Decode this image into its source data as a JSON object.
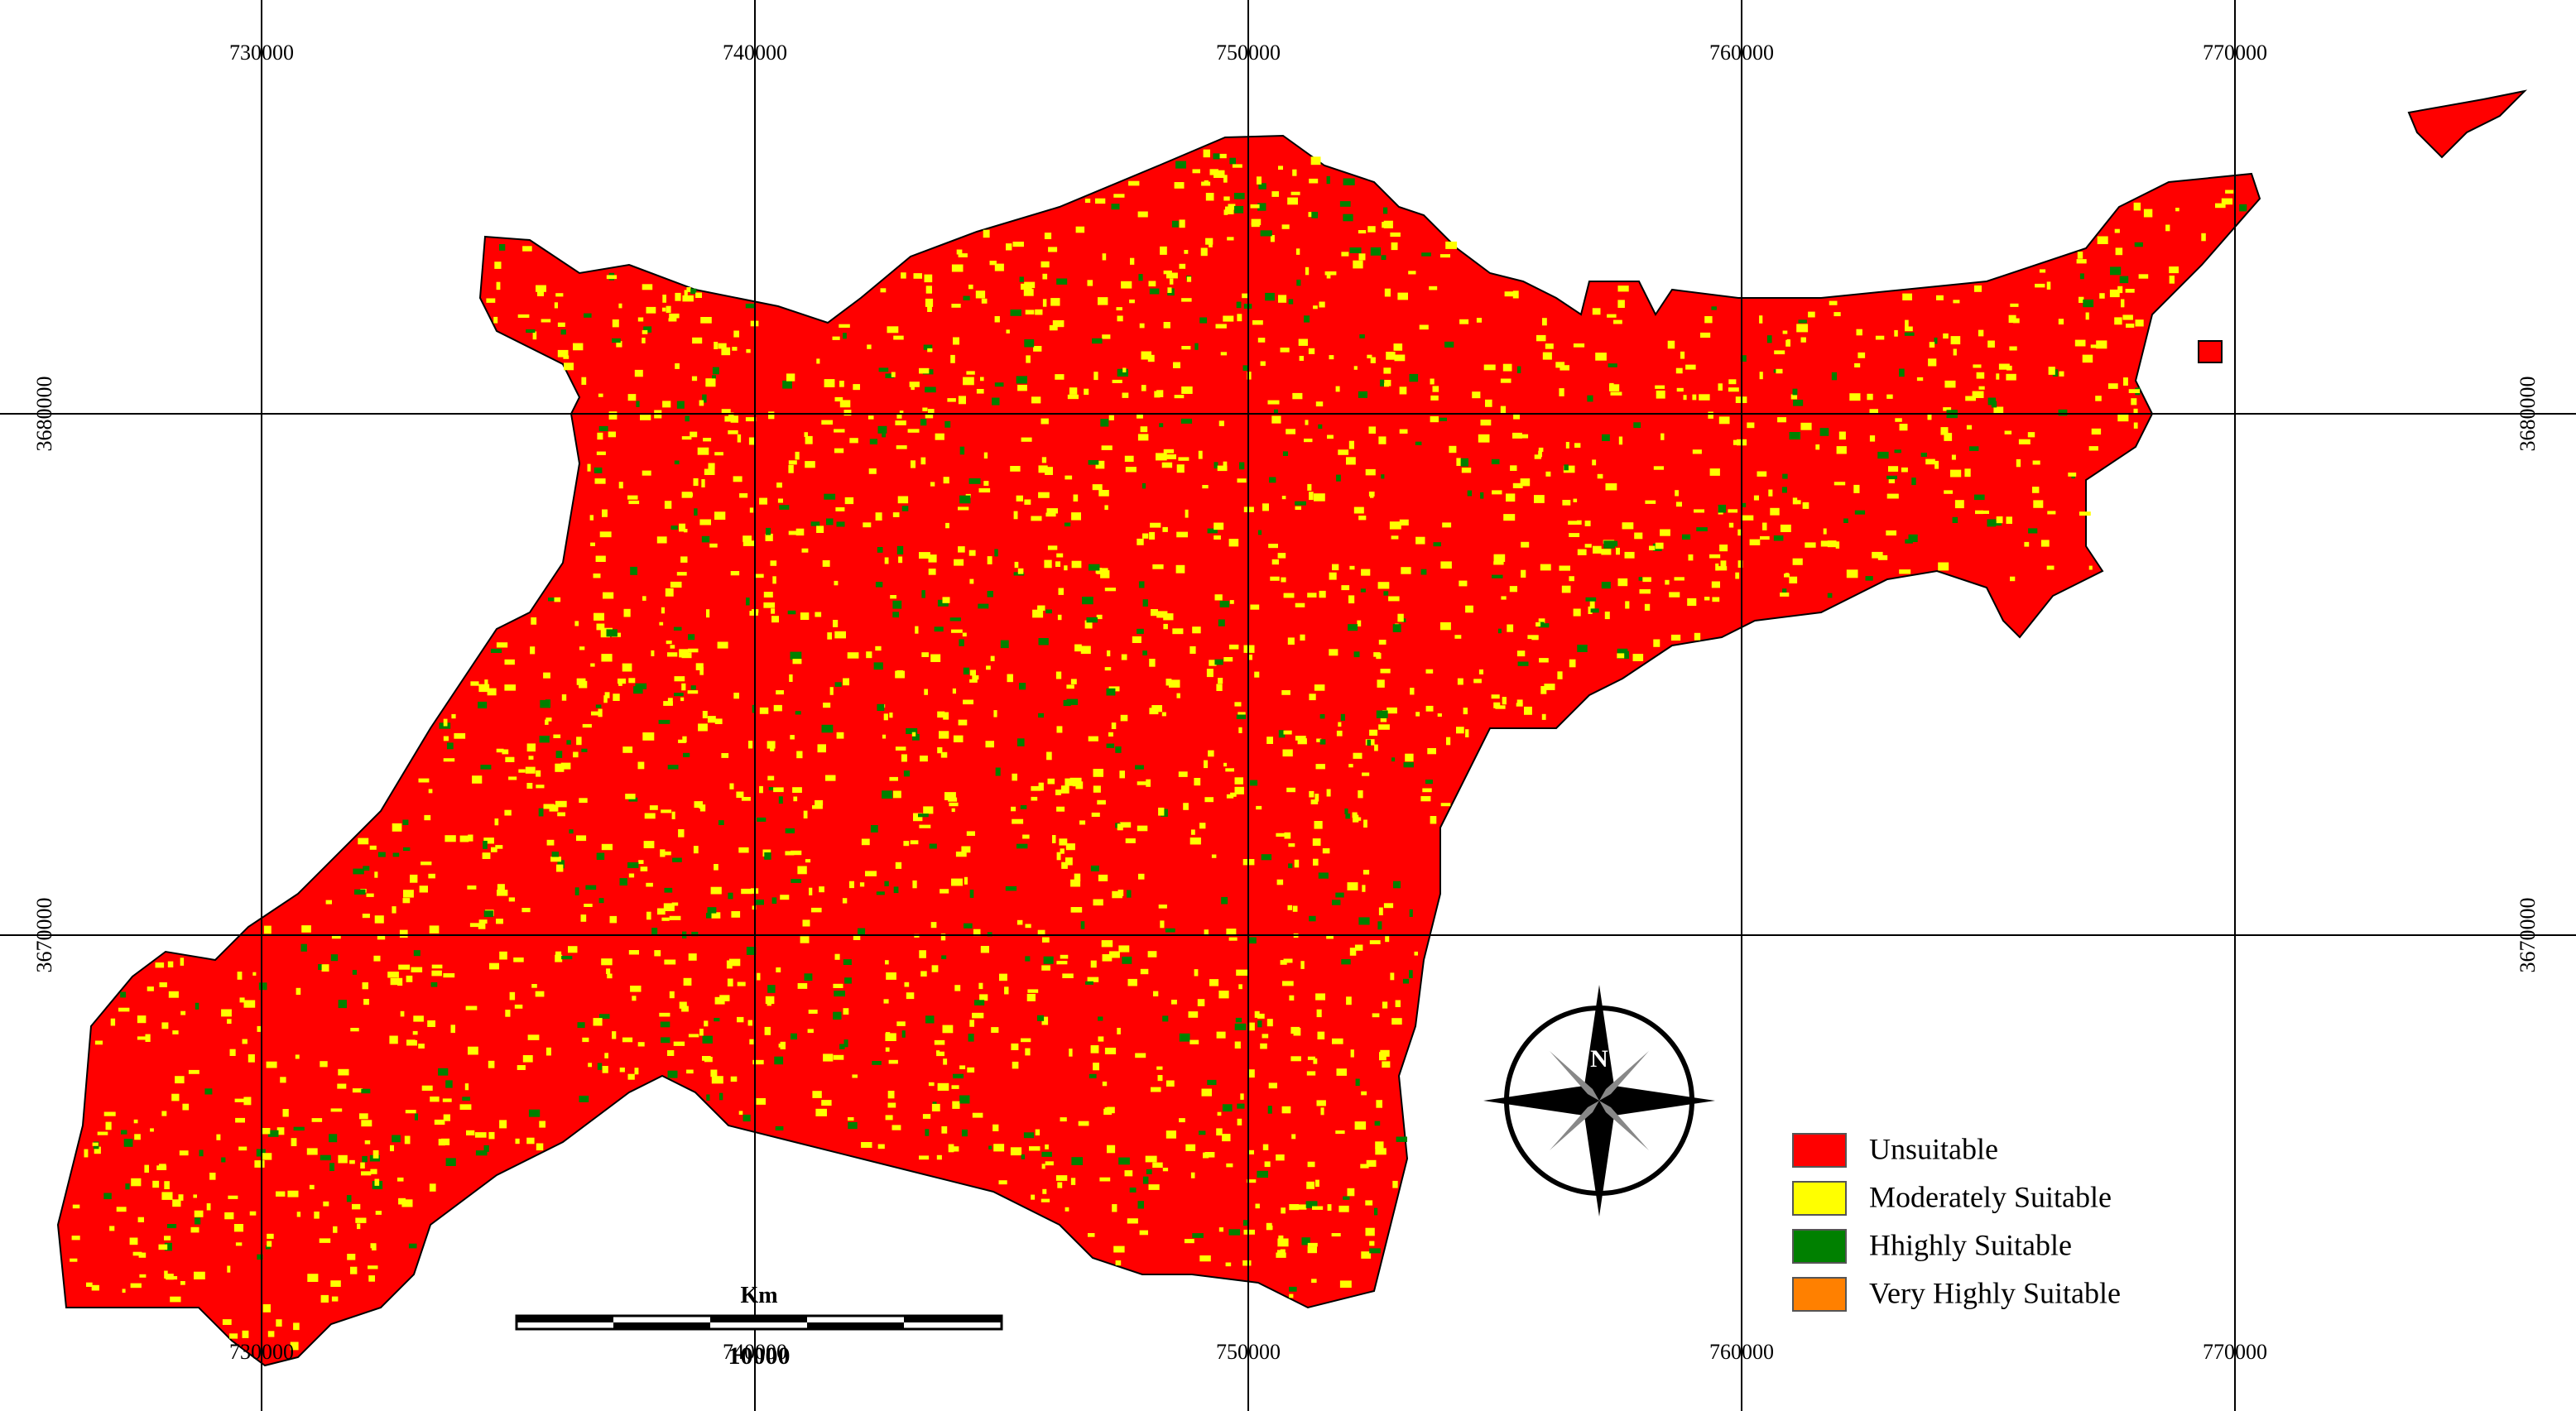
{
  "map": {
    "eastings": [
      730000,
      740000,
      750000,
      760000,
      770000
    ],
    "northings": [
      3680000,
      3670000
    ],
    "legend": [
      {
        "label": "Unsuitable",
        "color": "#ff0000"
      },
      {
        "label": "Moderately Suitable",
        "color": "#ffff00"
      },
      {
        "label": "Hhighly Suitable",
        "color": "#008000"
      },
      {
        "label": "Very Highly Suitable",
        "color": "#ff8000"
      }
    ],
    "scale_bar": {
      "unit": "Km",
      "distance": "10000"
    },
    "north_arrow": "N"
  }
}
